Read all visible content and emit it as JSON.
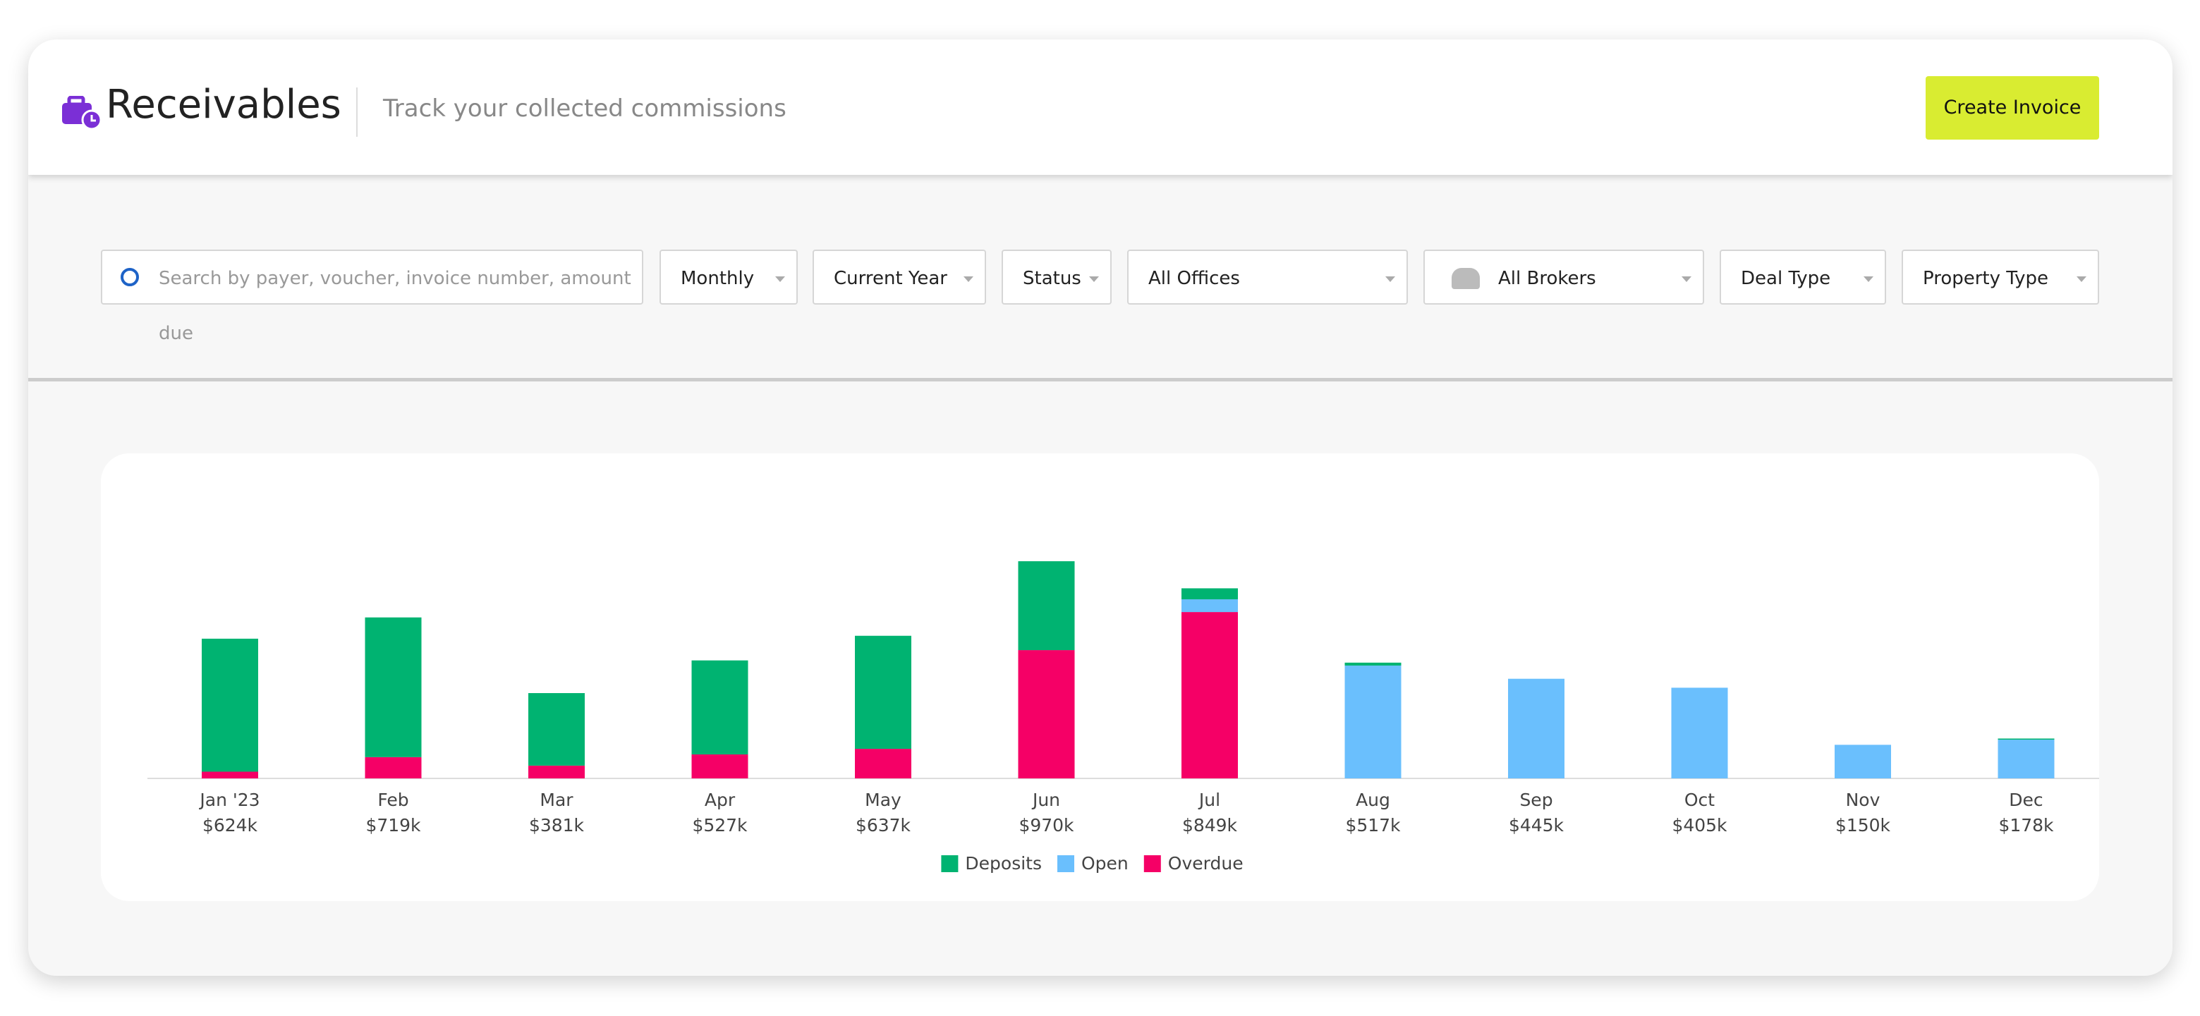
{
  "header": {
    "title": "Receivables",
    "subtitle": "Track your collected commissions",
    "button": "Create Invoice"
  },
  "filters": {
    "search_placeholder": "Search by payer, voucher, invoice number, amount due",
    "dropdowns": [
      "Monthly",
      "Current Year",
      "Status",
      "All Offices",
      "All Brokers",
      "Deal Type",
      "Property Type"
    ]
  },
  "chart_data": {
    "type": "bar",
    "stacked": true,
    "categories": [
      "Jan '23",
      "Feb",
      "Mar",
      "Apr",
      "May",
      "Jun",
      "Jul",
      "Aug",
      "Sep",
      "Oct",
      "Nov",
      "Dec"
    ],
    "series": [
      {
        "name": "Deposits",
        "color": "#00b371",
        "values": [
          594,
          624,
          324,
          420,
          505,
          397,
          49,
          13,
          0,
          0,
          0,
          5
        ]
      },
      {
        "name": "Open",
        "color": "#6abffd",
        "values": [
          0,
          0,
          0,
          0,
          0,
          0,
          57,
          504,
          445,
          405,
          150,
          173
        ]
      },
      {
        "name": "Overdue",
        "color": "#f50066",
        "values": [
          30,
          95,
          57,
          107,
          132,
          573,
          743,
          0,
          0,
          0,
          0,
          0
        ]
      }
    ],
    "totals": {
      "values": [
        624,
        719,
        381,
        527,
        637,
        970,
        849,
        517,
        445,
        405,
        150,
        178
      ],
      "value_labels": [
        "$624k",
        "$719k",
        "$381k",
        "$527k",
        "$637k",
        "$970k",
        "$849k",
        "$517k",
        "$445k",
        "$405k",
        "$150k",
        "$178k"
      ]
    }
  }
}
